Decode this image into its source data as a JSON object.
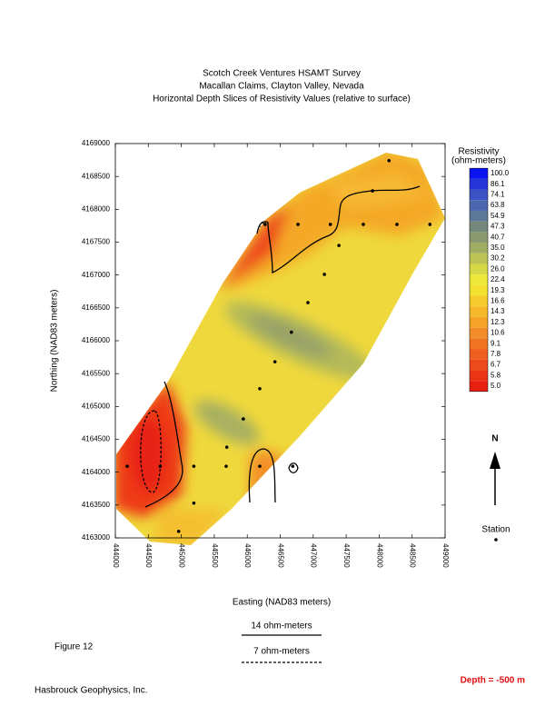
{
  "chart_data": {
    "type": "contour-map",
    "title": [
      "Scotch Creek Ventures HSAMT Survey",
      "Macallan Claims, Clayton Valley, Nevada",
      "Horizontal Depth Slices of Resistivity Values (relative to surface)"
    ],
    "xlabel": "Easting (NAD83 meters)",
    "ylabel": "Northing (NAD83 meters)",
    "xlim": [
      444000,
      449000
    ],
    "ylim": [
      4163000,
      4169000
    ],
    "xticks": [
      444000,
      444500,
      445000,
      445500,
      446000,
      446500,
      447000,
      447500,
      448000,
      448500,
      449000
    ],
    "yticks": [
      4163000,
      4163500,
      4164000,
      4164500,
      4165000,
      4165500,
      4166000,
      4166500,
      4167000,
      4167500,
      4168000,
      4168500,
      4169000
    ],
    "stations": {
      "x": [
        448150,
        447900,
        446270,
        446770,
        447260,
        447760,
        448270,
        448770,
        447390,
        447170,
        446920,
        446670,
        446420,
        446190,
        445940,
        445690,
        444180,
        444680,
        445190,
        445680,
        446190,
        446690,
        445190,
        444960
      ],
      "y": [
        4168740,
        4168280,
        4167770,
        4167770,
        4167770,
        4167770,
        4167770,
        4167770,
        4167450,
        4167010,
        4166580,
        4166130,
        4165680,
        4165270,
        4164810,
        4164380,
        4164090,
        4164090,
        4164090,
        4164090,
        4164090,
        4164090,
        4163530,
        4163100
      ]
    },
    "colorbar": {
      "title": "Resistivity",
      "unit": "(ohm-meters)",
      "levels": [
        {
          "value": 100,
          "label": "100.0"
        },
        86.1,
        74.1,
        63.8,
        54.9,
        47.3,
        40.7,
        {
          "value": 35,
          "label": "35.0"
        },
        30.2,
        {
          "value": 26,
          "label": "26.0"
        },
        22.4,
        19.3,
        16.6,
        14.3,
        12.3,
        10.6,
        9.1,
        7.8,
        6.7,
        5.8,
        {
          "value": 5,
          "label": "5.0"
        }
      ],
      "colors": [
        "#0a14f0",
        "#2434d8",
        "#3a52c4",
        "#4c66b0",
        "#5e7898",
        "#74887e",
        "#8a9870",
        "#a0ac62",
        "#bcc254",
        "#d6d846",
        "#ece83a",
        "#f4e030",
        "#f6cc2c",
        "#f6b82a",
        "#f4a228",
        "#f28c26",
        "#f07422",
        "#ee5e1e",
        "#ec4a1a",
        "#ea3416",
        "#e82012"
      ]
    },
    "contour_legend": [
      "14 ohm-meters",
      "7 ohm-meters"
    ],
    "north": "N",
    "station_label": "Station",
    "figure_label": "Figure 12",
    "credit": "Hasbrouck Geophysics, Inc.",
    "depth_label": "Depth = -500 m"
  }
}
